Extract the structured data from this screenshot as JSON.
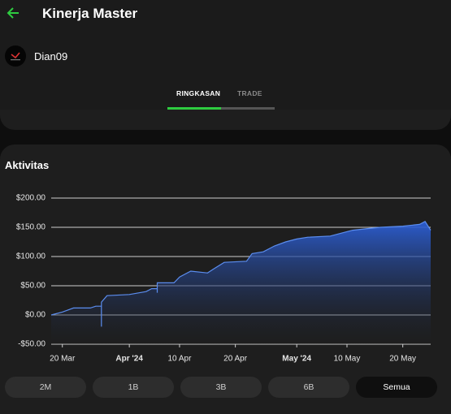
{
  "header": {
    "title": "Kinerja Master"
  },
  "user": {
    "name": "Dian09"
  },
  "tabs": [
    "RINGKASAN",
    "TRADE"
  ],
  "section_title": "Aktivitas",
  "chart_data": {
    "type": "area",
    "x": [
      "2024-03-18",
      "2024-03-20",
      "2024-03-22",
      "2024-03-25",
      "2024-03-26",
      "2024-03-27",
      "2024-03-27",
      "2024-03-27",
      "2024-03-28",
      "2024-04-01",
      "2024-04-04",
      "2024-04-05",
      "2024-04-06",
      "2024-04-06",
      "2024-04-06",
      "2024-04-09",
      "2024-04-10",
      "2024-04-12",
      "2024-04-15",
      "2024-04-16",
      "2024-04-18",
      "2024-04-22",
      "2024-04-23",
      "2024-04-25",
      "2024-04-27",
      "2024-04-29",
      "2024-05-01",
      "2024-05-03",
      "2024-05-07",
      "2024-05-09",
      "2024-05-11",
      "2024-05-14",
      "2024-05-16",
      "2024-05-20",
      "2024-05-23",
      "2024-05-24",
      "2024-05-25"
    ],
    "series": [
      {
        "color": "#5b8def",
        "values": [
          0,
          5,
          12,
          12,
          15,
          15,
          -20,
          22,
          33,
          35,
          40,
          45,
          45,
          38,
          55,
          55,
          65,
          75,
          72,
          78,
          90,
          92,
          105,
          108,
          118,
          125,
          130,
          133,
          135,
          140,
          145,
          148,
          150,
          152,
          155,
          160,
          145
        ]
      }
    ],
    "xlim": [
      "2024-03-18",
      "2024-05-25"
    ],
    "xticks": [
      {
        "value": "2024-03-20",
        "label": "20 Mar"
      },
      {
        "value": "2024-04-01",
        "label": "Apr '24"
      },
      {
        "value": "2024-04-10",
        "label": "10 Apr"
      },
      {
        "value": "2024-04-20",
        "label": "20 Apr"
      },
      {
        "value": "2024-05-01",
        "label": "May '24"
      },
      {
        "value": "2024-05-10",
        "label": "10 May"
      },
      {
        "value": "2024-05-20",
        "label": "20 May"
      }
    ],
    "ylim": [
      -50,
      200
    ],
    "yticks": [
      {
        "value": -50,
        "label": "-$50.00"
      },
      {
        "value": 0,
        "label": "$0.00"
      },
      {
        "value": 50,
        "label": "$50.00"
      },
      {
        "value": 100,
        "label": "$100.00"
      },
      {
        "value": 150,
        "label": "$150.00"
      },
      {
        "value": 200,
        "label": "$200.00"
      }
    ],
    "grid": true
  },
  "range_buttons": [
    "2M",
    "1B",
    "3B",
    "6B",
    "Semua"
  ]
}
